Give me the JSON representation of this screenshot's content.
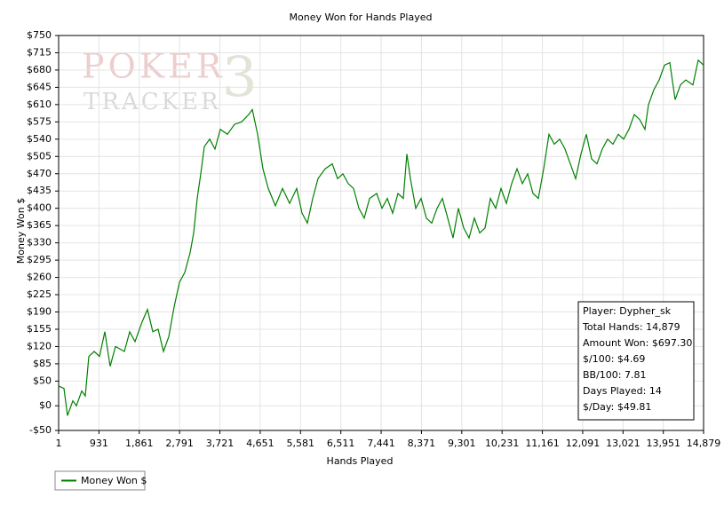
{
  "chart_data": {
    "type": "line",
    "title": "Money Won for Hands Played",
    "x_label": "Hands Played",
    "y_label": "Money Won $",
    "logo": {
      "top": "POKER",
      "mark": "3",
      "bottom": "TRACKER"
    },
    "xlim": [
      1,
      14879
    ],
    "ylim": [
      -50,
      750
    ],
    "xticks": [
      1,
      931,
      {
        "value": 1861,
        "label": "1,861"
      },
      {
        "value": 2791,
        "label": "2,791"
      },
      {
        "value": 3721,
        "label": "3,721"
      },
      {
        "value": 4651,
        "label": "4,651"
      },
      {
        "value": 5581,
        "label": "5,581"
      },
      {
        "value": 6511,
        "label": "6,511"
      },
      {
        "value": 7441,
        "label": "7,441"
      },
      {
        "value": 8371,
        "label": "8,371"
      },
      {
        "value": 9301,
        "label": "9,301"
      },
      {
        "value": 10231,
        "label": "10,231"
      },
      {
        "value": 11161,
        "label": "11,161"
      },
      {
        "value": 12091,
        "label": "12,091"
      },
      {
        "value": 13021,
        "label": "13,021"
      },
      {
        "value": 13951,
        "label": "13,951"
      },
      {
        "value": 14879,
        "label": "14,879"
      }
    ],
    "yticks": [
      {
        "value": -50,
        "label": "-$50"
      },
      {
        "value": 0,
        "label": "$0"
      },
      {
        "value": 50,
        "label": "$50"
      },
      {
        "value": 85,
        "label": "$85"
      },
      {
        "value": 120,
        "label": "$120"
      },
      {
        "value": 155,
        "label": "$155"
      },
      {
        "value": 190,
        "label": "$190"
      },
      {
        "value": 225,
        "label": "$225"
      },
      {
        "value": 260,
        "label": "$260"
      },
      {
        "value": 295,
        "label": "$295"
      },
      {
        "value": 330,
        "label": "$330"
      },
      {
        "value": 365,
        "label": "$365"
      },
      {
        "value": 400,
        "label": "$400"
      },
      {
        "value": 435,
        "label": "$435"
      },
      {
        "value": 470,
        "label": "$470"
      },
      {
        "value": 505,
        "label": "$505"
      },
      {
        "value": 540,
        "label": "$540"
      },
      {
        "value": 575,
        "label": "$575"
      },
      {
        "value": 610,
        "label": "$610"
      },
      {
        "value": 645,
        "label": "$645"
      },
      {
        "value": 680,
        "label": "$680"
      },
      {
        "value": 715,
        "label": "$715"
      },
      {
        "value": 750,
        "label": "$750"
      }
    ],
    "grid": true,
    "legend": "bottom-left",
    "x": [
      1,
      124,
      206,
      329,
      411,
      534,
      616,
      698,
      821,
      944,
      1067,
      1190,
      1313,
      1518,
      1640,
      1763,
      1927,
      2050,
      2173,
      2296,
      2419,
      2542,
      2665,
      2788,
      2911,
      3034,
      3116,
      3198,
      3280,
      3362,
      3485,
      3608,
      3731,
      3895,
      4059,
      4222,
      4386,
      4468,
      4591,
      4714,
      4837,
      5001,
      5165,
      5329,
      5493,
      5616,
      5739,
      5862,
      5985,
      6149,
      6313,
      6436,
      6559,
      6682,
      6805,
      6928,
      7051,
      7173,
      7337,
      7460,
      7583,
      7706,
      7829,
      7952,
      8034,
      8116,
      8239,
      8362,
      8485,
      8608,
      8731,
      8854,
      8977,
      9100,
      9223,
      9346,
      9469,
      9592,
      9715,
      9838,
      9961,
      10084,
      10207,
      10329,
      10452,
      10575,
      10698,
      10821,
      10944,
      11067,
      11190,
      11313,
      11436,
      11559,
      11682,
      11805,
      11928,
      12051,
      12174,
      12297,
      12420,
      12543,
      12666,
      12789,
      12912,
      13035,
      13158,
      13281,
      13404,
      13527,
      13609,
      13732,
      13854,
      13977,
      14100,
      14223,
      14346,
      14469,
      14633,
      14756,
      14879
    ],
    "series": [
      {
        "name": "Money Won $",
        "color": "#008000",
        "values": [
          40,
          35,
          -20,
          10,
          0,
          30,
          20,
          100,
          110,
          100,
          150,
          80,
          120,
          110,
          150,
          130,
          170,
          195,
          150,
          155,
          110,
          140,
          200,
          250,
          270,
          310,
          350,
          420,
          470,
          525,
          540,
          520,
          560,
          550,
          570,
          575,
          590,
          600,
          550,
          480,
          440,
          405,
          440,
          410,
          440,
          390,
          370,
          420,
          460,
          480,
          490,
          460,
          470,
          450,
          440,
          400,
          380,
          420,
          430,
          400,
          420,
          390,
          430,
          420,
          510,
          460,
          400,
          420,
          380,
          370,
          400,
          420,
          380,
          340,
          400,
          360,
          340,
          380,
          350,
          360,
          420,
          400,
          440,
          410,
          450,
          480,
          450,
          470,
          430,
          420,
          480,
          550,
          530,
          540,
          520,
          490,
          460,
          510,
          550,
          500,
          490,
          520,
          540,
          530,
          550,
          540,
          560,
          590,
          580,
          560,
          610,
          640,
          660,
          690,
          695,
          620,
          650,
          660,
          650,
          700,
          690
        ]
      }
    ],
    "stats": [
      "Player: Dypher_sk",
      "Total Hands: 14,879",
      "Amount Won: $697.30",
      "$/100: $4.69",
      "BB/100: 7.81",
      "Days Played: 14",
      "$/Day: $49.81"
    ]
  }
}
